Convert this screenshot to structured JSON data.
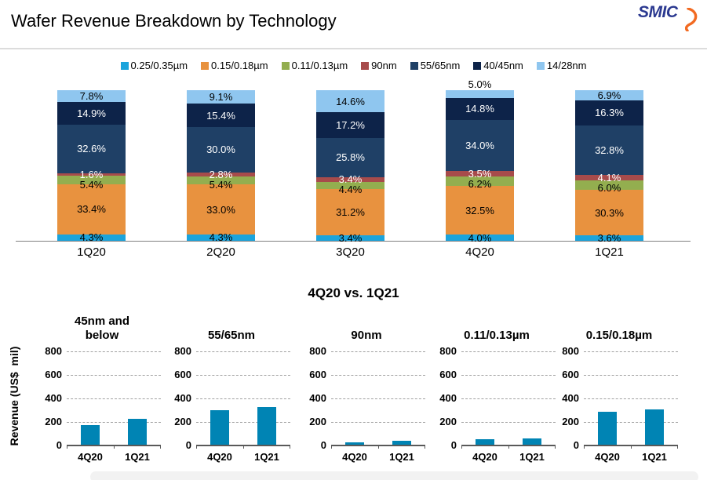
{
  "header": {
    "title": "Wafer Revenue Breakdown by Technology",
    "logo_text": "SMIC"
  },
  "colors": {
    "logo_blue": "#2B3990",
    "logo_swoosh_orange": "#F26A21",
    "stack_axis_gray": "#808080",
    "mini_axis_gray": "#595959",
    "grid_gray": "#A0A0A0",
    "mini_bar_teal": "#0084B4",
    "bottom_strip_gray": "#F2F2F2"
  },
  "chart_data": [
    {
      "type": "bar",
      "stacked": true,
      "unit": "percent",
      "legend_position": "top",
      "categories": [
        "1Q20",
        "2Q20",
        "3Q20",
        "4Q20",
        "1Q21"
      ],
      "series": [
        {
          "name": "0.25/0.35µm",
          "color": "#1BA4DC",
          "label_color": "#000000",
          "values": [
            4.3,
            4.3,
            3.4,
            4.0,
            3.6
          ]
        },
        {
          "name": "0.15/0.18µm",
          "color": "#E8923F",
          "label_color": "#000000",
          "values": [
            33.4,
            33.0,
            31.2,
            32.5,
            30.3
          ]
        },
        {
          "name": "0.11/0.13µm",
          "color": "#93AE4F",
          "label_color": "#000000",
          "values": [
            5.4,
            5.4,
            4.4,
            6.2,
            6.0
          ]
        },
        {
          "name": "90nm",
          "color": "#A74B4B",
          "label_color": "#FFFFFF",
          "values": [
            1.6,
            2.8,
            3.4,
            3.5,
            4.1
          ]
        },
        {
          "name": "55/65nm",
          "color": "#1F4066",
          "label_color": "#FFFFFF",
          "values": [
            32.6,
            30.0,
            25.8,
            34.0,
            32.8
          ]
        },
        {
          "name": "40/45nm",
          "color": "#0D2349",
          "label_color": "#FFFFFF",
          "values": [
            14.9,
            15.4,
            17.2,
            14.8,
            16.3
          ]
        },
        {
          "name": "14/28nm",
          "color": "#8FC6EF",
          "label_color": "#000000",
          "values": [
            7.8,
            9.1,
            14.6,
            5.0,
            6.9
          ]
        }
      ]
    },
    {
      "type": "bar",
      "title": "4Q20 vs. 1Q21",
      "ylabel": "Revenue (US$  mil)",
      "ylim": [
        0,
        800
      ],
      "yticks": [
        0,
        200,
        400,
        600,
        800
      ],
      "grid": "dashed",
      "bar_color": "#0084B4",
      "categories": [
        "4Q20",
        "1Q21"
      ],
      "panels": [
        {
          "title": "45nm and below",
          "values": [
            175,
            230
          ]
        },
        {
          "title": "55/65nm",
          "values": [
            300,
            330
          ]
        },
        {
          "title": "90nm",
          "values": [
            30,
            40
          ]
        },
        {
          "title": "0.11/0.13µm",
          "values": [
            55,
            60
          ]
        },
        {
          "title": "0.15/0.18µm",
          "values": [
            290,
            305
          ]
        }
      ]
    }
  ]
}
